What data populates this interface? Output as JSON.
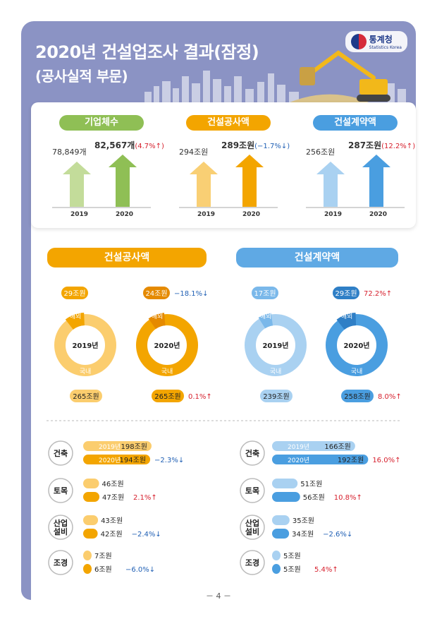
{
  "header": {
    "title_line1": "2020년 건설업조사 결과(잠정)",
    "title_line2": "(공사실적 부문)",
    "logo_text": "통계청",
    "logo_sub": "Statistics Korea"
  },
  "top_panel": {
    "groups": [
      {
        "label": "기업체수",
        "color": "#8fbf55",
        "light": "#c3dc9a",
        "v2019": "78,849개",
        "v2020": "82,567개",
        "change": "(4.7%↑)",
        "dir": "up",
        "y2019": "2019",
        "y2020": "2020"
      },
      {
        "label": "건설공사액",
        "color": "#f3a500",
        "light": "#f9cf74",
        "v2019": "294조원",
        "v2020": "289조원",
        "change": "(−1.7%↓)",
        "dir": "down",
        "y2019": "2019",
        "y2020": "2020"
      },
      {
        "label": "건설계약액",
        "color": "#4a9ee0",
        "light": "#a9d1f1",
        "v2019": "256조원",
        "v2020": "287조원",
        "change": "(12.2%↑)",
        "dir": "up",
        "y2019": "2019",
        "y2020": "2020"
      }
    ]
  },
  "donut_section": {
    "left_title": "건설공사액",
    "right_title": "건설계약액",
    "overseas_label": "해외",
    "domestic_label": "국내",
    "donuts": [
      {
        "year": "2019년",
        "overseas": "29조원",
        "domestic": "265조원",
        "ov_change": "",
        "dom_change": "",
        "ov_dir": "",
        "dom_dir": "",
        "color": "#fbcd6e",
        "dark": "#f3a500"
      },
      {
        "year": "2020년",
        "overseas": "24조원",
        "domestic": "265조원",
        "ov_change": "−18.1%↓",
        "dom_change": "0.1%↑",
        "ov_dir": "down",
        "dom_dir": "up",
        "color": "#f3a500",
        "dark": "#e58a00"
      },
      {
        "year": "2019년",
        "overseas": "17조원",
        "domestic": "239조원",
        "ov_change": "",
        "dom_change": "",
        "ov_dir": "",
        "dom_dir": "",
        "color": "#a9d1f1",
        "dark": "#7ab8ea"
      },
      {
        "year": "2020년",
        "overseas": "29조원",
        "domestic": "258조원",
        "ov_change": "72.2%↑",
        "dom_change": "8.0%↑",
        "ov_dir": "up",
        "dom_dir": "up",
        "color": "#4a9ee0",
        "dark": "#2f7fc6"
      }
    ]
  },
  "chart_data": [
    {
      "type": "bar",
      "title": "건설공사액",
      "categories": [
        "건축",
        "토목",
        "산업설비",
        "조경"
      ],
      "series": [
        {
          "name": "2019년",
          "values": [
            198,
            46,
            43,
            7
          ]
        },
        {
          "name": "2020년",
          "values": [
            194,
            47,
            42,
            6
          ]
        }
      ],
      "value_labels_2019": [
        "198조원",
        "46조원",
        "43조원",
        "7조원"
      ],
      "value_labels_2020": [
        "194조원",
        "47조원",
        "42조원",
        "6조원"
      ],
      "changes": [
        "−2.3%↓",
        "2.1%↑",
        "−2.4%↓",
        "−6.0%↓"
      ],
      "change_dirs": [
        "down",
        "up",
        "down",
        "down"
      ],
      "colors": {
        "y2019": "#fbcd6e",
        "y2020": "#f3a500"
      }
    },
    {
      "type": "bar",
      "title": "건설계약액",
      "categories": [
        "건축",
        "토목",
        "산업설비",
        "조경"
      ],
      "series": [
        {
          "name": "2019년",
          "values": [
            166,
            51,
            35,
            5
          ]
        },
        {
          "name": "2020년",
          "values": [
            192,
            56,
            34,
            5
          ]
        }
      ],
      "value_labels_2019": [
        "166조원",
        "51조원",
        "35조원",
        "5조원"
      ],
      "value_labels_2020": [
        "192조원",
        "56조원",
        "34조원",
        "5조원"
      ],
      "changes": [
        "16.0%↑",
        "10.8%↑",
        "−2.6%↓",
        "5.4%↑"
      ],
      "change_dirs": [
        "up",
        "up",
        "down",
        "up"
      ],
      "colors": {
        "y2019": "#a9d1f1",
        "y2020": "#4a9ee0"
      }
    }
  ],
  "category_circle_labels": [
    "건축",
    "토목",
    "산업\n설비",
    "조경"
  ],
  "footer": {
    "page": "－ 4 －"
  }
}
